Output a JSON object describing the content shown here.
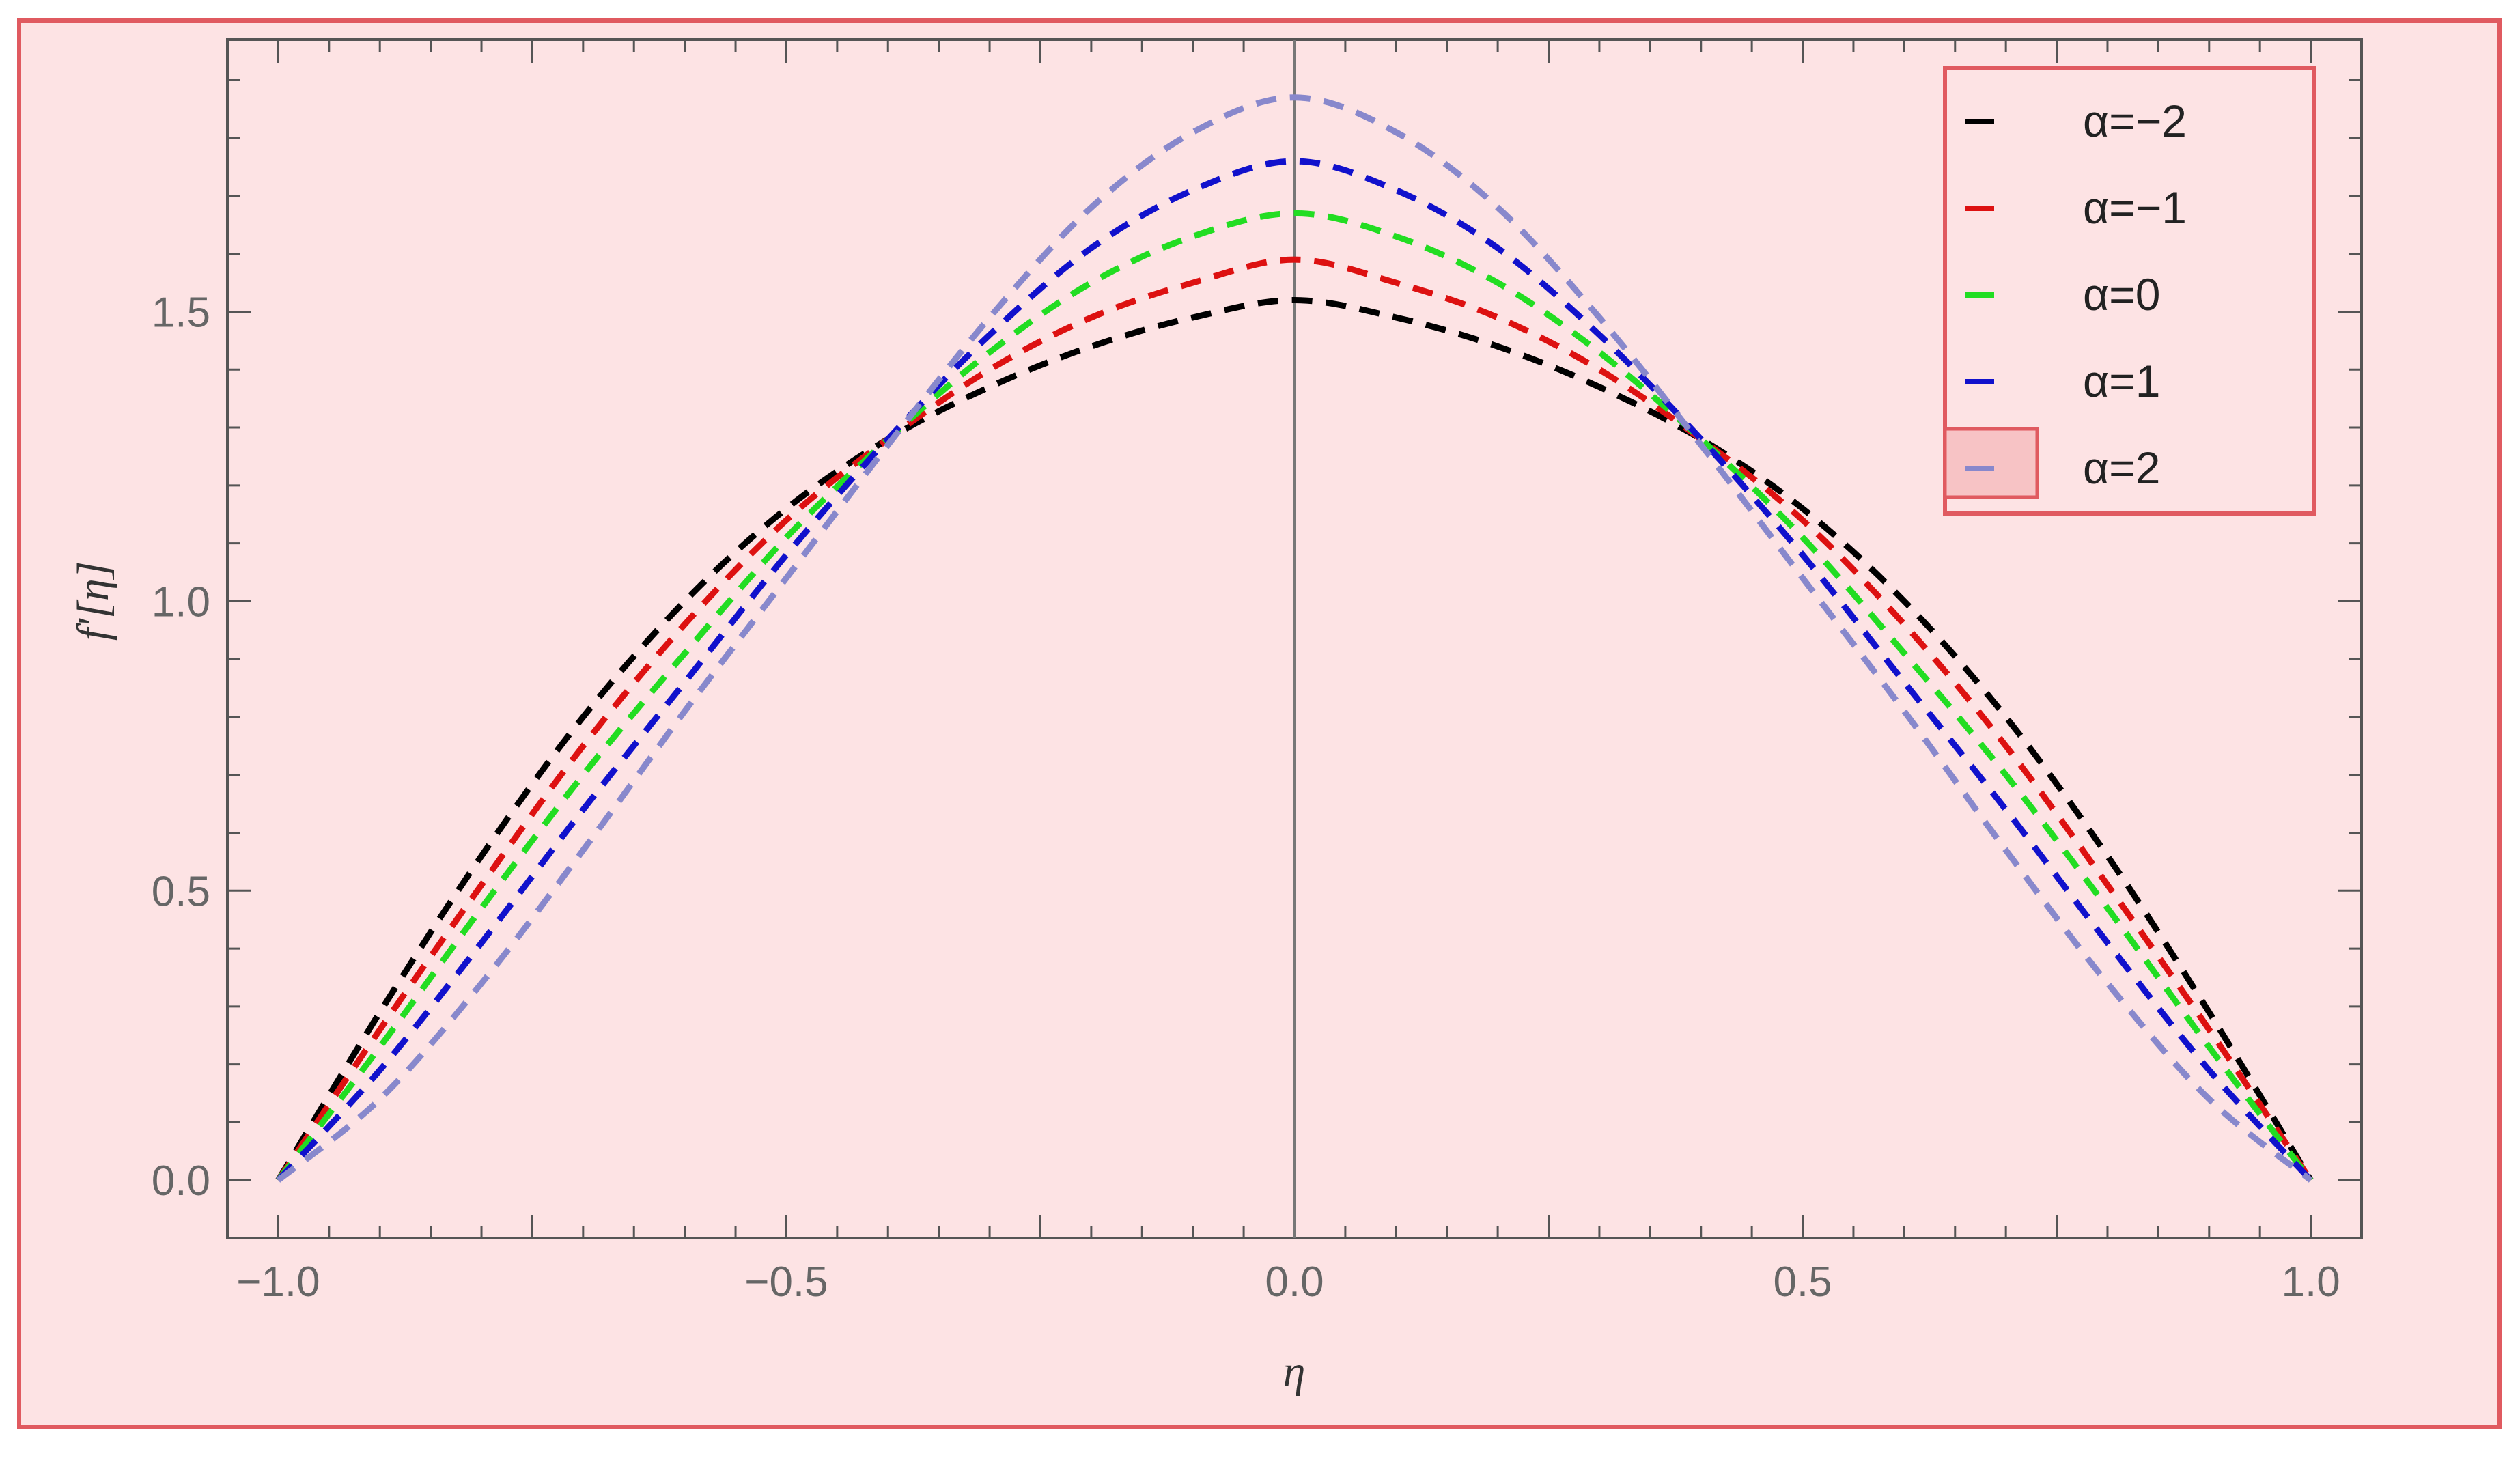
{
  "colors": {
    "background": "#fde3e4",
    "border": "#e05a60",
    "axis": "#555555",
    "zero_line": "#777777"
  },
  "chart_data": {
    "type": "line",
    "title": "",
    "xlabel": "η",
    "ylabel": "f'[η]",
    "xlim": [
      -1.05,
      1.05
    ],
    "ylim": [
      -0.1,
      1.97
    ],
    "x_ticks": [
      -1.0,
      -0.5,
      0.0,
      0.5,
      1.0
    ],
    "x_tick_labels": [
      "−1.0",
      "−0.5",
      "0.0",
      "0.5",
      "1.0"
    ],
    "y_ticks": [
      0.0,
      0.5,
      1.0,
      1.5
    ],
    "y_tick_labels": [
      "0.0",
      "0.5",
      "1.0",
      "1.5"
    ],
    "grid": false,
    "line_style": "dashed",
    "legend_position": "top-right",
    "x": [
      -1.0,
      -0.9,
      -0.8,
      -0.7,
      -0.6,
      -0.5,
      -0.4,
      -0.3,
      -0.2,
      -0.1,
      0.0,
      0.1,
      0.2,
      0.3,
      0.4,
      0.5,
      0.6,
      0.7,
      0.8,
      0.9,
      1.0
    ],
    "series": [
      {
        "name": "α=−2",
        "color": "#000000",
        "values": [
          0.0,
          0.29,
          0.56,
          0.8,
          1.0,
          1.16,
          1.28,
          1.37,
          1.44,
          1.49,
          1.52,
          1.49,
          1.44,
          1.37,
          1.28,
          1.16,
          1.0,
          0.8,
          0.56,
          0.29,
          0.0
        ]
      },
      {
        "name": "α=−1",
        "color": "#dd1111",
        "values": [
          0.0,
          0.26,
          0.51,
          0.75,
          0.96,
          1.14,
          1.28,
          1.4,
          1.49,
          1.55,
          1.59,
          1.55,
          1.49,
          1.4,
          1.28,
          1.14,
          0.96,
          0.75,
          0.51,
          0.26,
          0.0
        ]
      },
      {
        "name": "α=0",
        "color": "#22dd22",
        "values": [
          0.0,
          0.23,
          0.47,
          0.7,
          0.91,
          1.11,
          1.28,
          1.43,
          1.55,
          1.63,
          1.67,
          1.63,
          1.55,
          1.43,
          1.28,
          1.11,
          0.91,
          0.7,
          0.47,
          0.23,
          0.0
        ]
      },
      {
        "name": "α=1",
        "color": "#1111cc",
        "values": [
          0.0,
          0.19,
          0.41,
          0.64,
          0.86,
          1.08,
          1.28,
          1.46,
          1.61,
          1.71,
          1.76,
          1.71,
          1.61,
          1.46,
          1.28,
          1.08,
          0.86,
          0.64,
          0.41,
          0.19,
          0.0
        ]
      },
      {
        "name": "α=2",
        "color": "#8888cc",
        "values": [
          0.0,
          0.14,
          0.34,
          0.57,
          0.81,
          1.04,
          1.27,
          1.49,
          1.68,
          1.81,
          1.87,
          1.81,
          1.68,
          1.49,
          1.27,
          1.04,
          0.81,
          0.57,
          0.34,
          0.14,
          0.0
        ]
      }
    ]
  }
}
